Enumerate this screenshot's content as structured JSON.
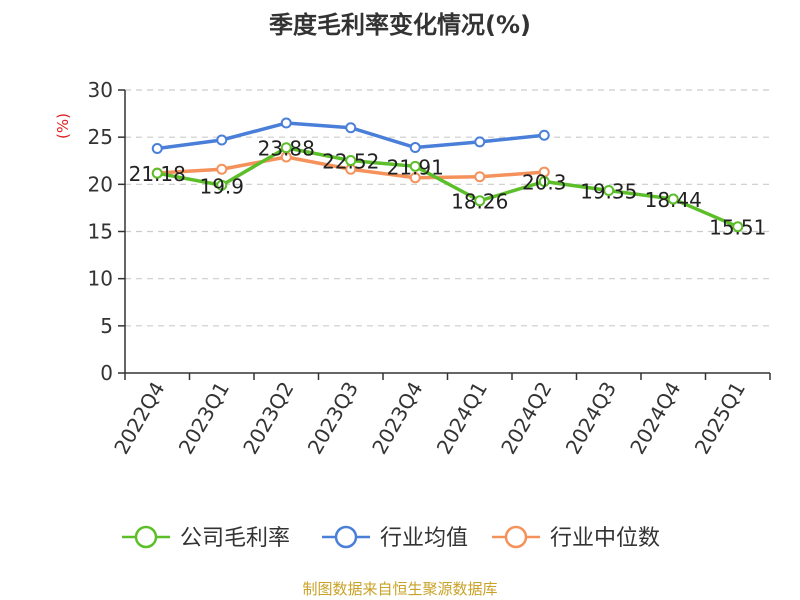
{
  "chart_data": {
    "type": "line",
    "title": "季度毛利率变化情况(%)",
    "ylabel": "(%)",
    "xlabel": "",
    "ylim": [
      0,
      30
    ],
    "yticks": [
      0,
      5,
      10,
      15,
      20,
      25,
      30
    ],
    "grid": true,
    "legend_position": "bottom",
    "categories": [
      "2022Q4",
      "2023Q1",
      "2023Q2",
      "2023Q3",
      "2023Q4",
      "2024Q1",
      "2024Q2",
      "2024Q3",
      "2024Q4",
      "2025Q1"
    ],
    "series": [
      {
        "name": "公司毛利率",
        "color": "#5cbf2a",
        "values": [
          21.18,
          19.9,
          23.88,
          22.52,
          21.91,
          18.26,
          20.3,
          19.35,
          18.44,
          15.51
        ],
        "labels": [
          "21.18",
          "19.9",
          "23.88",
          "22.52",
          "21.91",
          "18.26",
          "20.3",
          "19.35",
          "18.44",
          "15.51"
        ]
      },
      {
        "name": "行业均值",
        "color": "#4a7fd9",
        "values": [
          23.8,
          24.7,
          26.5,
          26.0,
          23.9,
          24.5,
          25.2,
          null,
          null,
          null
        ]
      },
      {
        "name": "行业中位数",
        "color": "#f5925b",
        "values": [
          21.2,
          21.6,
          22.9,
          21.6,
          20.7,
          20.8,
          21.3,
          null,
          null,
          null
        ]
      }
    ],
    "source": "制图数据来自恒生聚源数据库"
  }
}
